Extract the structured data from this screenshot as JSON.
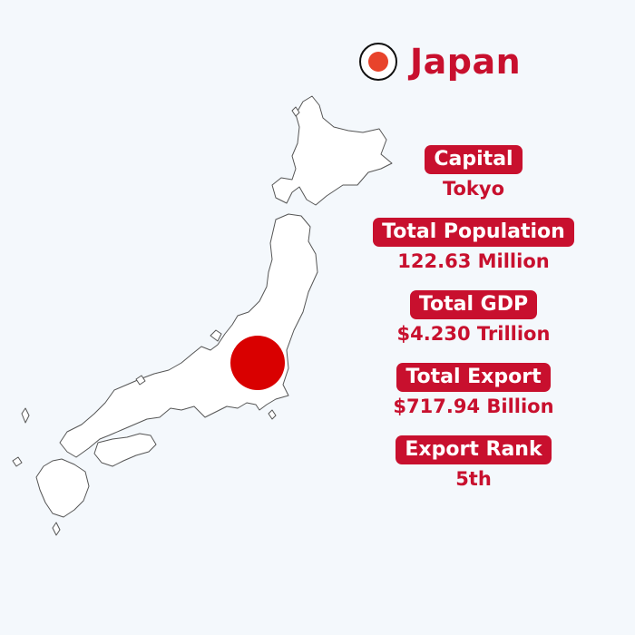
{
  "country": {
    "name": "Japan",
    "flag_icon": "japan-flag-icon",
    "accent_color": "#c8102e",
    "flag_red": "#e8432b",
    "marker_color": "#d90000"
  },
  "facts": [
    {
      "label": "Capital",
      "value": "Tokyo"
    },
    {
      "label": "Total Population",
      "value": "122.63 Million"
    },
    {
      "label": "Total GDP",
      "value": "$4.230 Trillion"
    },
    {
      "label": "Total Export",
      "value": "$717.94 Billion"
    },
    {
      "label": "Export Rank",
      "value": "5th"
    }
  ]
}
